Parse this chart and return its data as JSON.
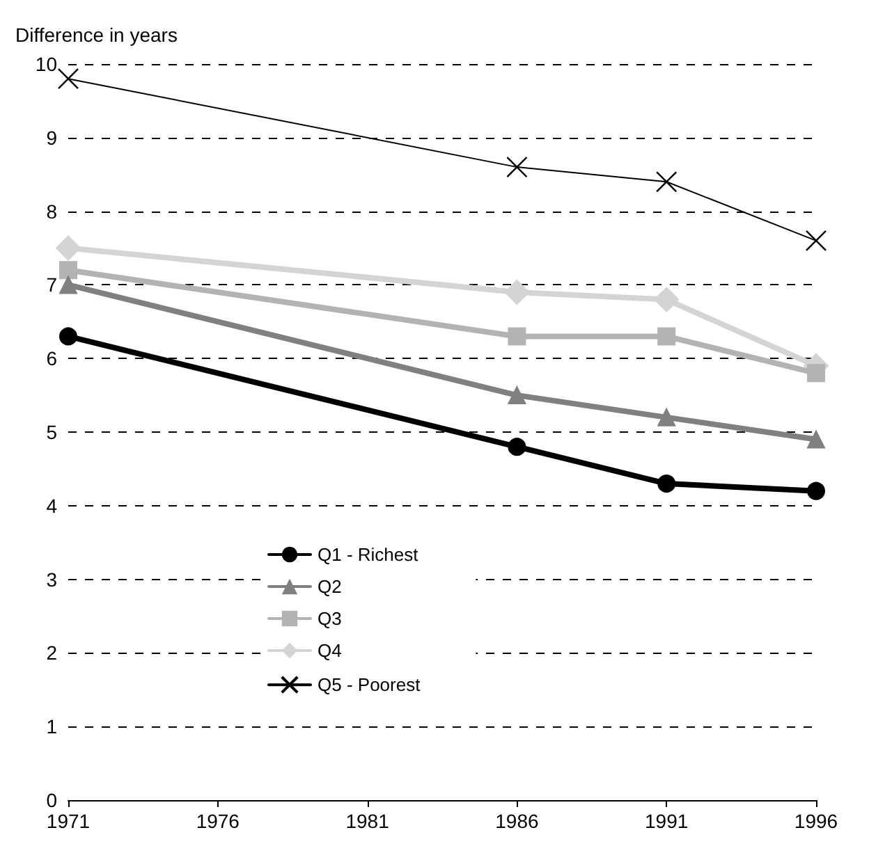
{
  "chart_data": {
    "type": "line",
    "ylabel": "Difference in years",
    "x": [
      1971,
      1986,
      1991,
      1996
    ],
    "xlim": [
      1971,
      1996
    ],
    "xticks": [
      1971,
      1976,
      1981,
      1986,
      1991,
      1996
    ],
    "ylim": [
      0,
      10
    ],
    "yticks": [
      0,
      1,
      2,
      3,
      4,
      5,
      6,
      7,
      8,
      9,
      10
    ],
    "grid": "y",
    "legend": "left",
    "line_style": "solid",
    "series": [
      {
        "name": "Q1 - Richest",
        "color": "#000000",
        "marker": "circle",
        "values": [
          6.3,
          4.8,
          4.3,
          4.2
        ]
      },
      {
        "name": "Q2",
        "color": "#808080",
        "marker": "triangle",
        "values": [
          7.0,
          5.5,
          5.2,
          4.9
        ]
      },
      {
        "name": "Q3",
        "color": "#b3b3b3",
        "marker": "square",
        "values": [
          7.2,
          6.3,
          6.3,
          5.8
        ]
      },
      {
        "name": "Q4",
        "color": "#d4d4d4",
        "marker": "diamond",
        "values": [
          7.5,
          6.9,
          6.8,
          5.9
        ]
      },
      {
        "name": "Q5 - Poorest",
        "color": "#000000",
        "marker": "cross",
        "values": [
          9.8,
          8.6,
          8.4,
          7.6
        ]
      }
    ]
  }
}
